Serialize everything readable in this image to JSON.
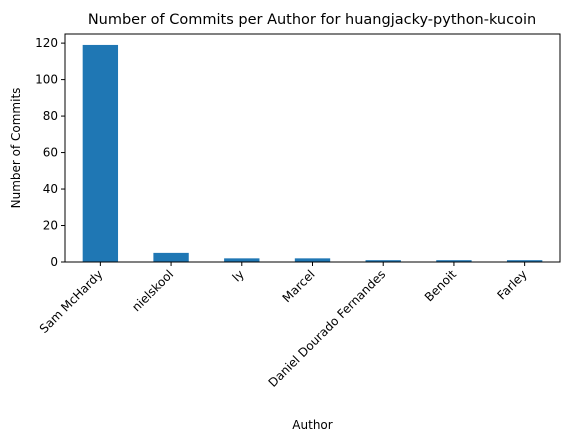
{
  "chart_data": {
    "type": "bar",
    "title": "Number of Commits per Author for huangjacky-python-kucoin",
    "xlabel": "Author",
    "ylabel": "Number of Commits",
    "categories": [
      "Sam McHardy",
      "nielskool",
      "ly",
      "Marcel",
      "Daniel Dourado Fernandes",
      "Benoit",
      "Farley"
    ],
    "values": [
      119,
      5,
      2,
      2,
      1,
      1,
      1
    ],
    "ylim": [
      0,
      125
    ],
    "yticks": [
      0,
      20,
      40,
      60,
      80,
      100,
      120
    ],
    "grid": false,
    "bar_color": "#1f77b4"
  }
}
